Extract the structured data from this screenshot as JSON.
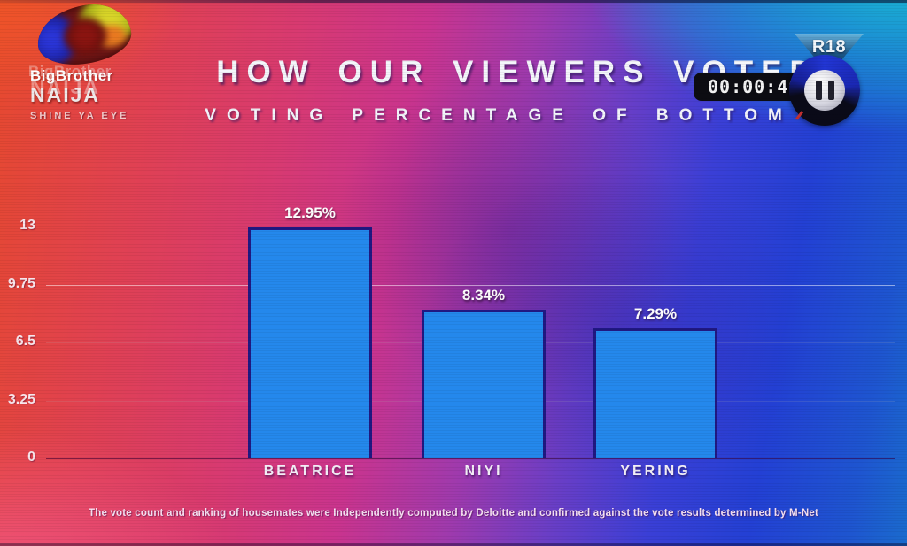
{
  "logo": {
    "brand_top": "BigBrother",
    "brand_main": "NAIJA",
    "tagline": "SHINE YA EYE"
  },
  "header": {
    "title": "HOW OUR VIEWERS VOTED",
    "subtitle": "VOTING PERCENTAGE OF BOTTOM 3"
  },
  "overlay": {
    "rating": "R18",
    "timer": "00:00:40",
    "pause_icon": "pause-icon"
  },
  "disclaimer": "The vote count and ranking of housemates were Independently computed by Deloitte and confirmed against the vote results determined by M-Net",
  "chart_data": {
    "type": "bar",
    "title": "VOTING PERCENTAGE OF BOTTOM 3",
    "categories": [
      "BEATRICE",
      "NIYI",
      "YERING"
    ],
    "values": [
      12.95,
      8.34,
      7.29
    ],
    "value_labels": [
      "12.95%",
      "8.34%",
      "7.29%"
    ],
    "yticks": [
      13,
      9.75,
      6.5,
      3.25,
      0
    ],
    "ylim": [
      0,
      13
    ],
    "grid": true,
    "legend": false,
    "bar_color": "#2488ec",
    "bar_border_color": "#201882",
    "gridline_color": "#ffffff"
  }
}
